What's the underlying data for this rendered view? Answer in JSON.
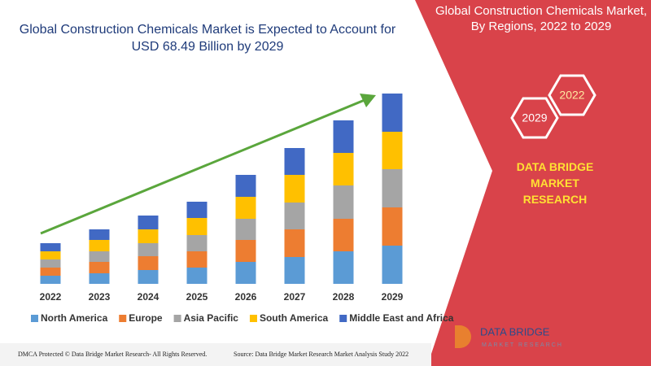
{
  "title": "Global Construction Chemicals Market is Expected to Account for USD 68.49 Billion by 2029",
  "panel": {
    "title": "Global Construction Chemicals Market, By Regions, 2022 to 2029",
    "hexagons": [
      "2029",
      "2022"
    ],
    "brand": "DATA BRIDGE MARKET RESEARCH"
  },
  "logo": {
    "name": "DATA BRIDGE",
    "tagline": "MARKET RESEARCH"
  },
  "footer": {
    "left": "DMCA Protected © Data Bridge Market Research- All Rights Reserved.",
    "right": "Source: Data Bridge Market Research Market Analysis Study 2022"
  },
  "chart_data": {
    "type": "bar",
    "stacked": true,
    "categories": [
      "2022",
      "2023",
      "2024",
      "2025",
      "2026",
      "2027",
      "2028",
      "2029"
    ],
    "series": [
      {
        "name": "North America",
        "color": "#5b9bd5",
        "values": [
          10,
          13,
          17,
          20,
          27,
          33,
          40,
          47
        ]
      },
      {
        "name": "Europe",
        "color": "#ed7d31",
        "values": [
          10,
          14,
          17,
          20,
          27,
          34,
          40,
          47
        ]
      },
      {
        "name": "Asia Pacific",
        "color": "#a5a5a5",
        "values": [
          10,
          13,
          16,
          20,
          26,
          33,
          41,
          47
        ]
      },
      {
        "name": "South America",
        "color": "#ffc000",
        "values": [
          10,
          14,
          17,
          21,
          27,
          34,
          40,
          46
        ]
      },
      {
        "name": "Middle East and Africa",
        "color": "#4169c4",
        "values": [
          10,
          13,
          17,
          20,
          27,
          33,
          40,
          47
        ]
      }
    ]
  }
}
